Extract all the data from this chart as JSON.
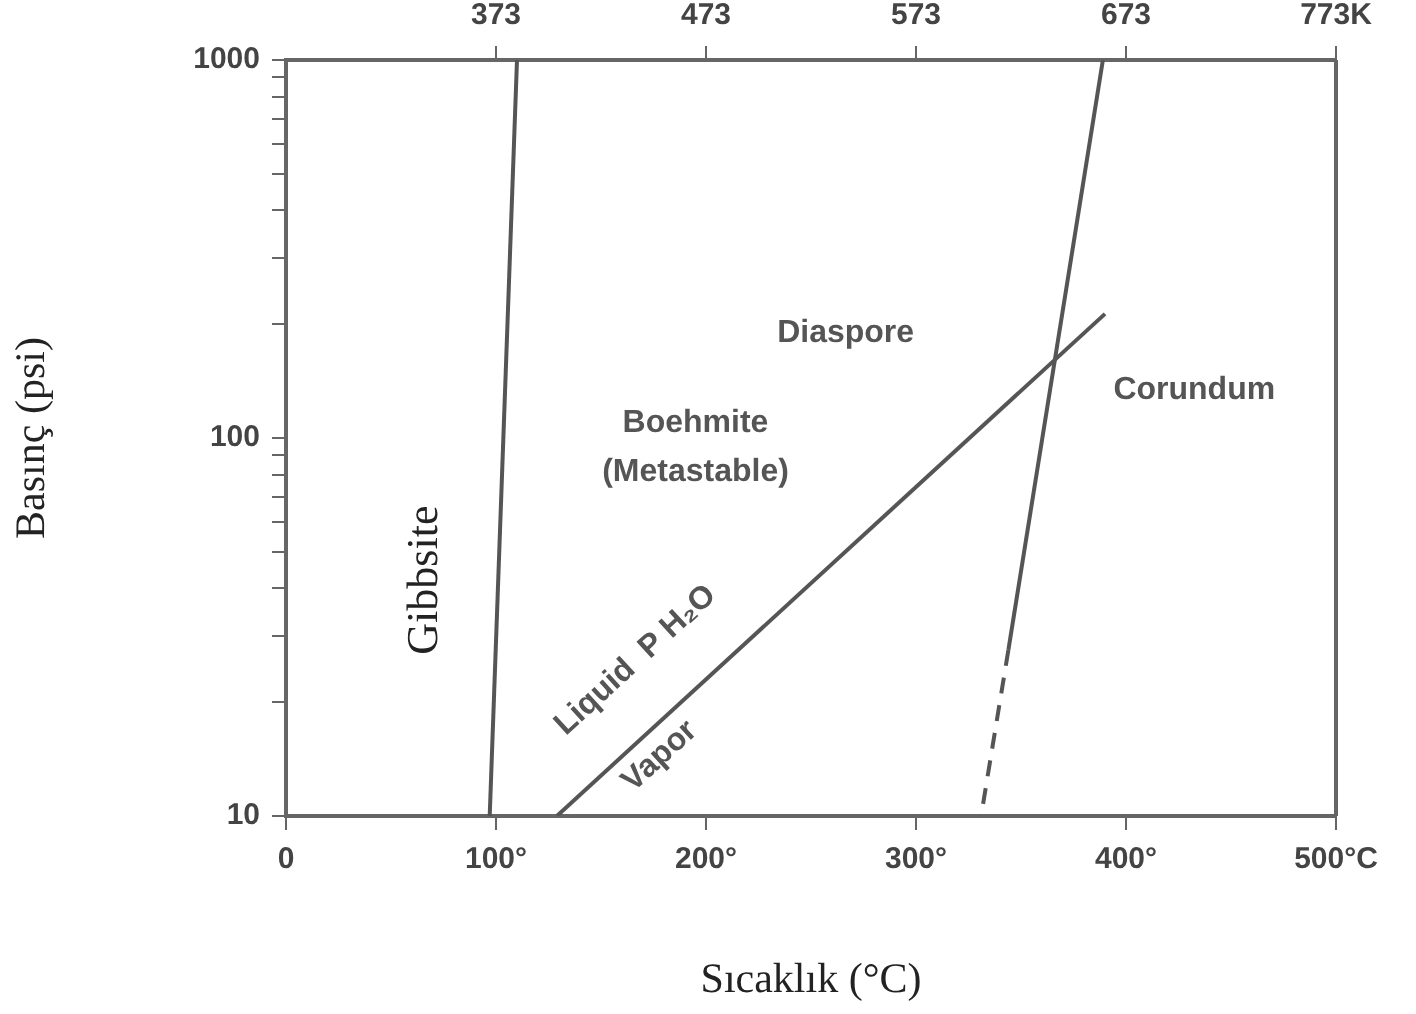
{
  "chart_data": {
    "type": "line",
    "xlabel": "Sıcaklık (°C)",
    "ylabel": "Basınç (psi)",
    "log": "y",
    "grid": false,
    "legend": false,
    "marker": "none",
    "xlim": [
      0,
      500
    ],
    "xticks": [
      0,
      {
        "value": 100,
        "label": "100°"
      },
      {
        "value": 200,
        "label": "200°"
      },
      {
        "value": 300,
        "label": "300°"
      },
      {
        "value": 400,
        "label": "400°"
      },
      {
        "value": 500,
        "label": "500°C"
      }
    ],
    "x2lim": [
      273,
      773
    ],
    "x2ticks": [
      373,
      473,
      573,
      673,
      {
        "value": 773,
        "label": "773K"
      }
    ],
    "ylim": [
      10,
      1000
    ],
    "yticks": [
      10,
      {
        "value": 20,
        "label": null
      },
      {
        "value": 30,
        "label": null
      },
      {
        "value": 40,
        "label": null
      },
      {
        "value": 50,
        "label": null
      },
      {
        "value": 60,
        "label": null
      },
      {
        "value": 70,
        "label": null
      },
      {
        "value": 80,
        "label": null
      },
      {
        "value": 90,
        "label": null
      },
      100,
      {
        "value": 200,
        "label": null
      },
      {
        "value": 300,
        "label": null
      },
      {
        "value": 400,
        "label": null
      },
      {
        "value": 500,
        "label": null
      },
      {
        "value": 600,
        "label": null
      },
      {
        "value": 700,
        "label": null
      },
      {
        "value": 800,
        "label": null
      },
      {
        "value": 900,
        "label": null
      },
      1000
    ],
    "series": [
      {
        "color": "#555555",
        "x": [
          97,
          110
        ],
        "values": [
          10,
          1000
        ],
        "line_style": "solid"
      },
      {
        "color": "#555555",
        "x": [
          129,
          390
        ],
        "values": [
          10,
          213
        ],
        "line_style": "solid"
      },
      {
        "color": "#555555",
        "x": [
          389,
          344
        ],
        "values": [
          1000,
          27.5
        ],
        "line_style": "solid"
      },
      {
        "color": "#555555",
        "x": [
          344,
          331
        ],
        "values": [
          27.5,
          10
        ],
        "line_style": "dashed"
      }
    ],
    "annotations": [
      "Diaspore",
      "Corundum",
      "Boehmite",
      "(Metastable)",
      "Gibbsite",
      "Liquid  P H₂O",
      "Vapor"
    ]
  }
}
